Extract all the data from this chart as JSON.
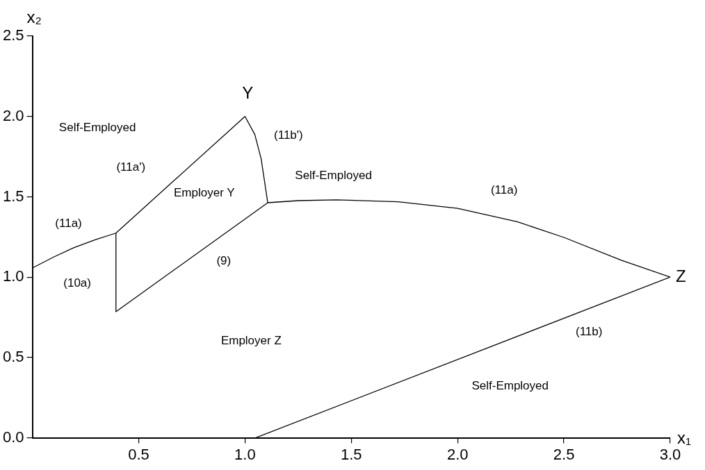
{
  "chart_data": {
    "type": "line",
    "xlabel": "x₁",
    "ylabel": "x₂",
    "xlim": [
      0,
      3
    ],
    "ylim": [
      0,
      2.5
    ],
    "xticks": [
      {
        "value": 0.5,
        "label": "0.5"
      },
      {
        "value": 1,
        "label": "1.0"
      },
      {
        "value": 1.5,
        "label": "1.5"
      },
      {
        "value": 2,
        "label": "2.0"
      },
      {
        "value": 2.5,
        "label": "2.5"
      },
      {
        "value": 3,
        "label": "3.0"
      }
    ],
    "yticks": [
      {
        "value": 0,
        "label": "0.0"
      },
      {
        "value": 0.5,
        "label": "0.5"
      },
      {
        "value": 1,
        "label": "1.0"
      },
      {
        "value": 1.5,
        "label": "1.5"
      },
      {
        "value": 2,
        "label": "2.0"
      },
      {
        "value": 2.5,
        "label": "2.5"
      }
    ],
    "grid": false,
    "legend": false,
    "marker": "none",
    "line_style": "solid",
    "series": [
      {
        "color": "#000000",
        "x": [
          0,
          0.1,
          0.196,
          0.3,
          0.393,
          1.0,
          1.046,
          1.076,
          1.107,
          0.393,
          0.393,
          null,
          1.107,
          1.25,
          1.43,
          1.72,
          2.0,
          2.28,
          2.5,
          2.77,
          3.0,
          1.05
        ],
        "values": [
          1.057,
          1.125,
          1.184,
          1.235,
          1.274,
          2.0,
          1.888,
          1.736,
          1.463,
          0.785,
          1.274,
          null,
          1.463,
          1.476,
          1.481,
          1.469,
          1.428,
          1.345,
          1.247,
          1.105,
          1.0,
          0
        ]
      }
    ],
    "annotations": [
      "Y",
      "Z",
      "Self-Employed",
      "(11a')",
      "Employer Y",
      "(11b')",
      "Self-Employed",
      "(11a)",
      "(11a)",
      "(9)",
      "(10a)",
      "Employer Z",
      "(11b)",
      "Self-Employed"
    ]
  }
}
